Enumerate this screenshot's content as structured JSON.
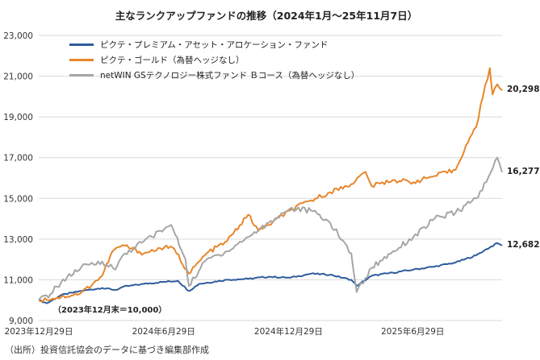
{
  "chart_data": {
    "type": "line",
    "title": "主なランクアップファンドの推移（2024年1月～25年11月7日）",
    "source": "（出所）投資信託協会のデータに基づき編集部作成",
    "baseline_note": "（2023年12月末＝10,000）",
    "ylim": [
      9000,
      23000
    ],
    "y_ticks": [
      "9,000",
      "11,000",
      "13,000",
      "15,000",
      "17,000",
      "19,000",
      "21,000",
      "23,000"
    ],
    "y_tick_values": [
      9000,
      11000,
      13000,
      15000,
      17000,
      19000,
      21000,
      23000
    ],
    "x_ticks": [
      "2023年12月29日",
      "2024年6月29日",
      "2024年12月29日",
      "2025年6月29日"
    ],
    "x_tick_values": [
      "2023-12-29",
      "2024-06-29",
      "2024-12-29",
      "2025-06-29"
    ],
    "x_range": [
      "2023-12-29",
      "2025-11-07"
    ],
    "grid": true,
    "legend_position": "top-left",
    "series": [
      {
        "name": "ピクテ・プレミアム・アセット・アロケーション・ファンド",
        "color": "#2E5C9E",
        "end_label": "12,682",
        "points": [
          [
            "2023-12-29",
            10000
          ],
          [
            "2024-01-10",
            9850
          ],
          [
            "2024-01-31",
            10250
          ],
          [
            "2024-02-29",
            10450
          ],
          [
            "2024-03-31",
            10600
          ],
          [
            "2024-04-20",
            10500
          ],
          [
            "2024-04-30",
            10650
          ],
          [
            "2024-05-31",
            10800
          ],
          [
            "2024-06-30",
            10900
          ],
          [
            "2024-07-20",
            10950
          ],
          [
            "2024-08-05",
            10450
          ],
          [
            "2024-08-20",
            10800
          ],
          [
            "2024-09-30",
            11000
          ],
          [
            "2024-10-31",
            11050
          ],
          [
            "2024-11-30",
            11150
          ],
          [
            "2024-12-31",
            11100
          ],
          [
            "2025-01-31",
            11300
          ],
          [
            "2025-02-28",
            11250
          ],
          [
            "2025-03-31",
            11000
          ],
          [
            "2025-04-08",
            10700
          ],
          [
            "2025-04-30",
            11200
          ],
          [
            "2025-05-31",
            11350
          ],
          [
            "2025-06-30",
            11500
          ],
          [
            "2025-07-31",
            11650
          ],
          [
            "2025-08-31",
            11850
          ],
          [
            "2025-09-30",
            12200
          ],
          [
            "2025-10-15",
            12500
          ],
          [
            "2025-10-31",
            12800
          ],
          [
            "2025-11-07",
            12682
          ]
        ]
      },
      {
        "name": "ピクテ・ゴールド（為替ヘッジなし）",
        "color": "#E8862A",
        "end_label": "20,298",
        "points": [
          [
            "2023-12-29",
            10000
          ],
          [
            "2024-01-31",
            10150
          ],
          [
            "2024-02-29",
            10350
          ],
          [
            "2024-03-31",
            11200
          ],
          [
            "2024-04-15",
            12400
          ],
          [
            "2024-04-30",
            12700
          ],
          [
            "2024-05-31",
            12300
          ],
          [
            "2024-06-30",
            12600
          ],
          [
            "2024-07-15",
            12500
          ],
          [
            "2024-08-05",
            11300
          ],
          [
            "2024-08-31",
            12300
          ],
          [
            "2024-09-30",
            12900
          ],
          [
            "2024-10-31",
            14200
          ],
          [
            "2024-11-15",
            13400
          ],
          [
            "2024-11-30",
            13700
          ],
          [
            "2024-12-31",
            14400
          ],
          [
            "2025-01-31",
            14900
          ],
          [
            "2025-02-28",
            15300
          ],
          [
            "2025-03-31",
            15700
          ],
          [
            "2025-04-21",
            16300
          ],
          [
            "2025-04-30",
            15600
          ],
          [
            "2025-05-31",
            15900
          ],
          [
            "2025-06-30",
            15800
          ],
          [
            "2025-07-31",
            16100
          ],
          [
            "2025-08-31",
            16400
          ],
          [
            "2025-09-15",
            17600
          ],
          [
            "2025-09-30",
            18500
          ],
          [
            "2025-10-10",
            20000
          ],
          [
            "2025-10-20",
            21400
          ],
          [
            "2025-10-24",
            20100
          ],
          [
            "2025-10-31",
            20600
          ],
          [
            "2025-11-07",
            20298
          ]
        ]
      },
      {
        "name": "netWIN GSテクノロジー株式ファンド Ｂコース（為替ヘッジなし）",
        "color": "#A6A6A6",
        "end_label": "16,277",
        "points": [
          [
            "2023-12-29",
            10000
          ],
          [
            "2024-01-15",
            10300
          ],
          [
            "2024-01-31",
            10900
          ],
          [
            "2024-02-29",
            11600
          ],
          [
            "2024-03-31",
            11900
          ],
          [
            "2024-04-19",
            11500
          ],
          [
            "2024-04-30",
            12200
          ],
          [
            "2024-05-31",
            12900
          ],
          [
            "2024-06-30",
            13500
          ],
          [
            "2024-07-10",
            13700
          ],
          [
            "2024-07-31",
            12000
          ],
          [
            "2024-08-05",
            10700
          ],
          [
            "2024-08-31",
            12000
          ],
          [
            "2024-09-30",
            12400
          ],
          [
            "2024-10-31",
            13100
          ],
          [
            "2024-11-30",
            13800
          ],
          [
            "2024-12-31",
            14500
          ],
          [
            "2025-01-31",
            14400
          ],
          [
            "2025-02-28",
            13800
          ],
          [
            "2025-03-31",
            12300
          ],
          [
            "2025-04-08",
            10400
          ],
          [
            "2025-04-30",
            11600
          ],
          [
            "2025-05-31",
            12400
          ],
          [
            "2025-06-30",
            13100
          ],
          [
            "2025-07-31",
            14000
          ],
          [
            "2025-08-31",
            14300
          ],
          [
            "2025-09-30",
            15000
          ],
          [
            "2025-10-15",
            15800
          ],
          [
            "2025-10-31",
            17000
          ],
          [
            "2025-11-07",
            16277
          ]
        ]
      }
    ]
  }
}
